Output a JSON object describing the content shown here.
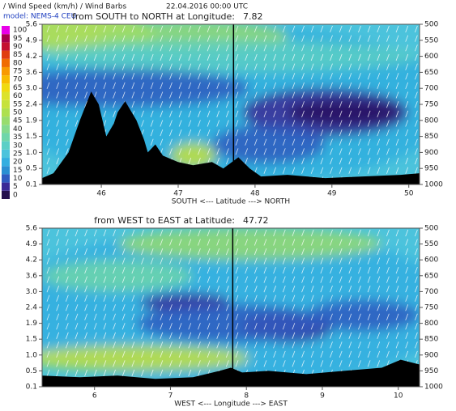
{
  "header": {
    "title": "/ Wind Speed (km/h) / Wind Barbs",
    "date": "22.04.2016  00:00 UTC",
    "model": "model: NEMS-4 CEU"
  },
  "colorbar": {
    "labels": [
      0,
      5,
      10,
      15,
      20,
      25,
      30,
      35,
      40,
      45,
      50,
      55,
      60,
      65,
      70,
      75,
      80,
      85,
      90,
      95,
      100
    ],
    "colors": [
      "#24104e",
      "#3a2a96",
      "#2f5cc0",
      "#2a8fd2",
      "#33aee0",
      "#4cc3dc",
      "#5ccfc6",
      "#6fd6aa",
      "#84da8e",
      "#98dc6e",
      "#aee050",
      "#c6e23c",
      "#dce22c",
      "#f0da10",
      "#f8bc00",
      "#f89a00",
      "#f06c00",
      "#e03c10",
      "#c41030",
      "#a8004a",
      "#e800e8"
    ]
  },
  "chart_data": [
    {
      "type": "heatmap",
      "title": "from SOUTH to NORTH at Longitude:",
      "title_value": 7.82,
      "xlabel": "SOUTH <---     Latitude     ---> NORTH",
      "xlim": [
        45.23,
        50.14
      ],
      "xticks": [
        46,
        47,
        48,
        49,
        50
      ],
      "y2lim": [
        1000,
        500
      ],
      "y2ticks": [
        1000,
        950,
        900,
        850,
        800,
        750,
        700,
        650,
        600,
        550,
        500
      ],
      "height_labels": [
        "0.1",
        "0.5",
        "1.0",
        "1.5",
        "1.9",
        "2.4",
        "3.0",
        "3.6",
        "4.2",
        "4.9",
        "5.6"
      ]
    },
    {
      "type": "heatmap",
      "title": "from WEST to EAST at Latitude:",
      "title_value": 47.72,
      "xlabel": "WEST <---     Longitude     ---> EAST",
      "xlim": [
        5.31,
        10.28
      ],
      "xticks": [
        6,
        7,
        8,
        9,
        10
      ],
      "y2lim": [
        1000,
        500
      ],
      "y2ticks": [
        1000,
        950,
        900,
        850,
        800,
        750,
        700,
        650,
        600,
        550,
        500
      ],
      "height_labels": [
        "0.1",
        "0.5",
        "1.0",
        "1.5",
        "1.9",
        "2.4",
        "3.0",
        "3.6",
        "4.2",
        "4.9",
        "5.6"
      ]
    }
  ]
}
